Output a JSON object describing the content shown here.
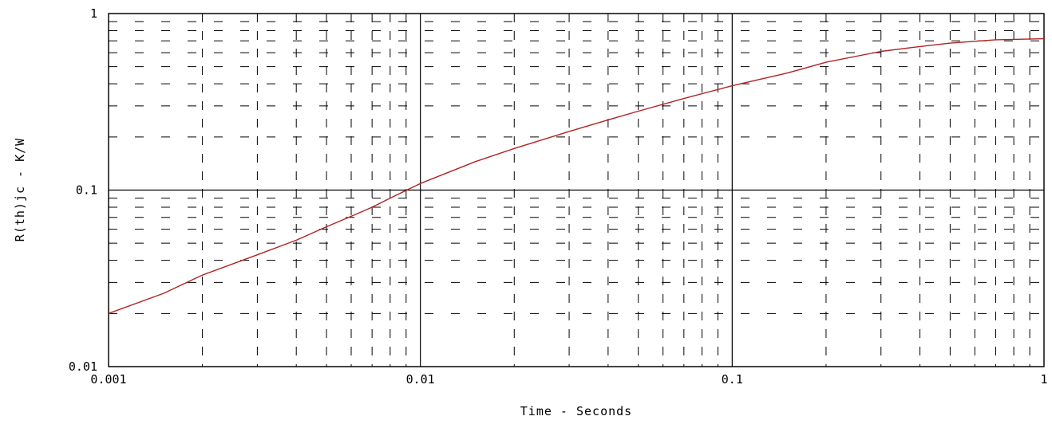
{
  "chart_data": {
    "type": "line",
    "title": "",
    "xlabel": "Time - Seconds",
    "ylabel": "R(th)jc - K/W",
    "x_scale": "log",
    "y_scale": "log",
    "xlim": [
      0.001,
      1
    ],
    "ylim": [
      0.01,
      1
    ],
    "x_ticks": [
      {
        "value": 0.001,
        "label": "0.001"
      },
      {
        "value": 0.01,
        "label": "0.01"
      },
      {
        "value": 0.1,
        "label": "0.1"
      },
      {
        "value": 1,
        "label": "1"
      }
    ],
    "y_ticks": [
      {
        "value": 0.01,
        "label": "0.01"
      },
      {
        "value": 0.1,
        "label": "0.1"
      },
      {
        "value": 1,
        "label": "1"
      }
    ],
    "grid": "major solid, minor dashed",
    "line_color": "#b22222",
    "series": [
      {
        "x": [
          0.001,
          0.0015,
          0.002,
          0.003,
          0.004,
          0.005,
          0.006,
          0.007,
          0.008,
          0.01,
          0.015,
          0.02,
          0.03,
          0.04,
          0.05,
          0.07,
          0.1,
          0.15,
          0.2,
          0.3,
          0.4,
          0.5,
          0.7,
          1.0
        ],
        "y": [
          0.02,
          0.026,
          0.033,
          0.043,
          0.052,
          0.062,
          0.071,
          0.08,
          0.09,
          0.109,
          0.145,
          0.172,
          0.215,
          0.25,
          0.28,
          0.33,
          0.39,
          0.46,
          0.53,
          0.61,
          0.65,
          0.68,
          0.71,
          0.72
        ]
      }
    ]
  }
}
